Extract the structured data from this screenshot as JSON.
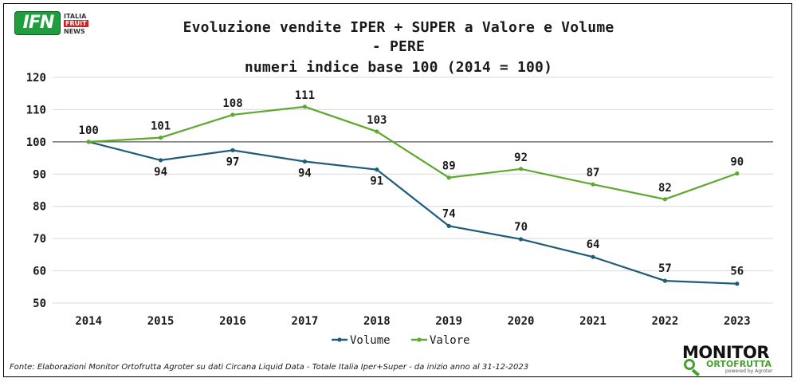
{
  "logo_ifn": {
    "mark": "IFN",
    "line1": "ITALIA",
    "line2": "FRUIT",
    "line3": "NEWS"
  },
  "title_lines": [
    "Evoluzione vendite IPER + SUPER a Valore e Volume",
    "- PERE",
    "numeri indice base 100 (2014 = 100)"
  ],
  "chart_data": {
    "type": "line",
    "title": "Evoluzione vendite IPER + SUPER a Valore e Volume - PERE numeri indice base 100 (2014 = 100)",
    "categories": [
      "2014",
      "2015",
      "2016",
      "2017",
      "2018",
      "2019",
      "2020",
      "2021",
      "2022",
      "2023"
    ],
    "series": [
      {
        "name": "Volume",
        "color": "#1f5c7a",
        "values": [
          100,
          94.3,
          97.4,
          93.9,
          91.4,
          73.9,
          69.8,
          64.3,
          56.9,
          56.0
        ],
        "labels": [
          "100",
          "94",
          "97",
          "94",
          "91",
          "74",
          "70",
          "64",
          "57",
          "56"
        ]
      },
      {
        "name": "Valore",
        "color": "#5ea82e",
        "values": [
          100,
          101.3,
          108.4,
          110.9,
          103.2,
          88.9,
          91.6,
          86.8,
          82.2,
          90.2
        ],
        "labels": [
          "100",
          "101",
          "108",
          "111",
          "103",
          "89",
          "92",
          "87",
          "82",
          "90"
        ]
      }
    ],
    "yticks": [
      "50",
      "60",
      "70",
      "80",
      "90",
      "100",
      "110",
      "120"
    ],
    "ylim": [
      50,
      120
    ],
    "reference_line": 100,
    "grid": true,
    "legend_position": "bottom"
  },
  "footer": "Fonte: Elaborazioni Monitor Ortofrutta Agroter su dati Circana Liquid Data - Totale Italia Iper+Super -  da inizio anno al 31-12-2023",
  "logo_monitor": {
    "word1": "MONITOR",
    "word2": "ORTOFRUTTA",
    "word3": "powered by Agroter"
  }
}
